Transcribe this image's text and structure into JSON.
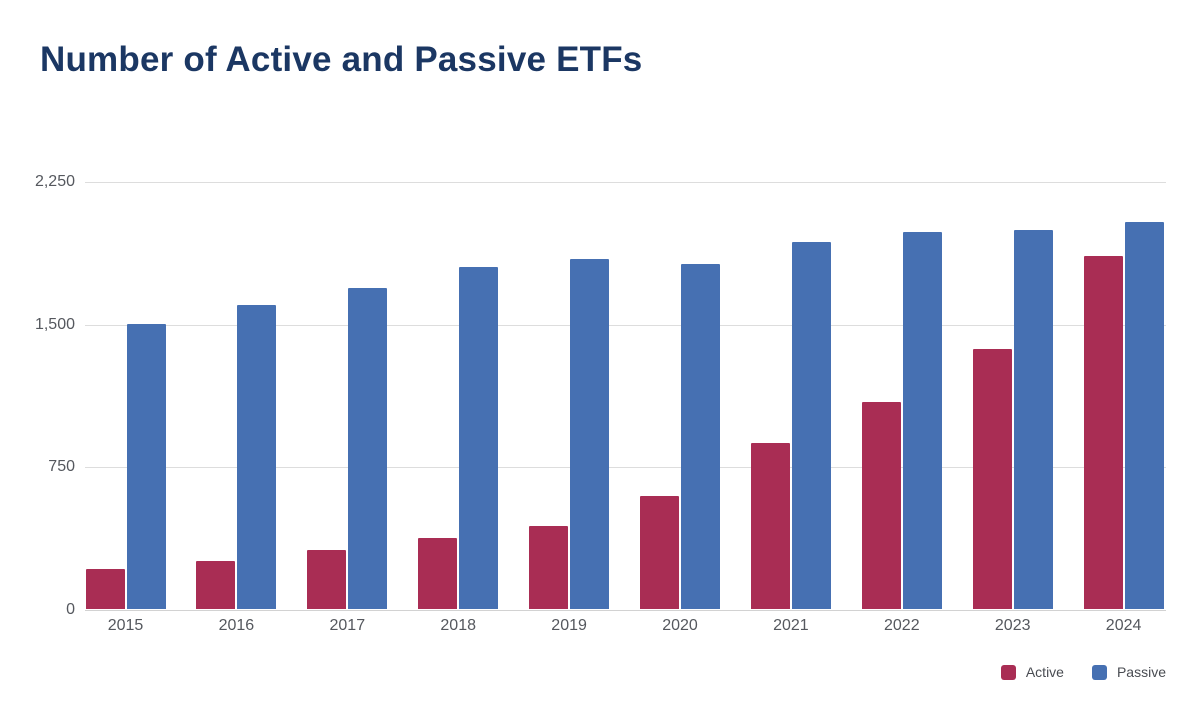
{
  "title": "Number of Active and Passive ETFs",
  "colors": {
    "active": "#a92d54",
    "passive": "#4670b2",
    "title_text": "#1b3763",
    "axis_text": "#55585e",
    "legend_text": "#494c52",
    "gridline": "#dddddd",
    "baseline": "#d2d2d2",
    "background": "#ffffff"
  },
  "chart_data": {
    "type": "bar",
    "title": "Number of Active and Passive ETFs",
    "xlabel": "",
    "ylabel": "",
    "categories": [
      "2015",
      "2016",
      "2017",
      "2018",
      "2019",
      "2020",
      "2021",
      "2022",
      "2023",
      "2024"
    ],
    "series": [
      {
        "name": "Active",
        "color_key": "active",
        "values": [
          210,
          250,
          310,
          375,
          435,
          595,
          875,
          1090,
          1365,
          1855
        ]
      },
      {
        "name": "Passive",
        "color_key": "passive",
        "values": [
          1500,
          1600,
          1685,
          1800,
          1840,
          1815,
          1930,
          1980,
          1995,
          2035
        ]
      }
    ],
    "ylim": [
      0,
      2250
    ],
    "yticks": [
      {
        "value": 0,
        "label": "0"
      },
      {
        "value": 750,
        "label": "750"
      },
      {
        "value": 1500,
        "label": "1,500"
      },
      {
        "value": 2250,
        "label": "2,250"
      }
    ],
    "grid": true,
    "legend_position": "bottom-right"
  },
  "legend": {
    "items": [
      {
        "label": "Active",
        "color_key": "active"
      },
      {
        "label": "Passive",
        "color_key": "passive"
      }
    ]
  }
}
